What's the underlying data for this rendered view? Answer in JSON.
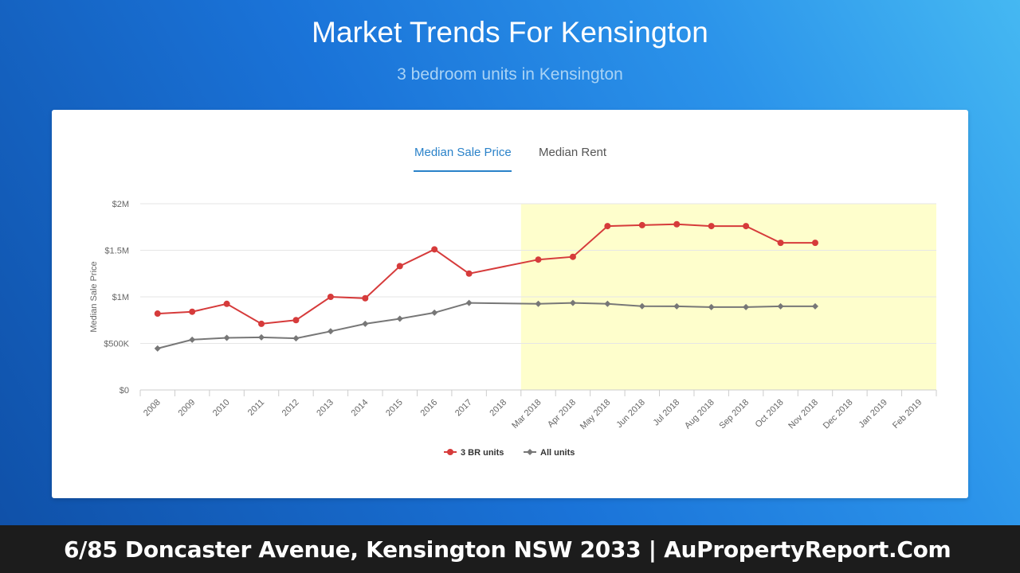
{
  "page": {
    "title": "Market Trends For Kensington",
    "subtitle": "3 bedroom units in Kensington"
  },
  "tabs": [
    {
      "label": "Median Sale Price",
      "active": true
    },
    {
      "label": "Median Rent",
      "active": false
    }
  ],
  "footer": {
    "text": "6/85 Doncaster Avenue, Kensington NSW 2033 | AuPropertyReport.Com"
  },
  "colors": {
    "accent": "#2a82c9",
    "series_3br": "#d63b3b",
    "series_all": "#777777",
    "highlight_band": "#fefecc"
  },
  "chart_data": {
    "type": "line",
    "ylabel": "Median Sale Price",
    "xlabel": "",
    "ylim": [
      0,
      2000000
    ],
    "yticks": [
      {
        "value": 0,
        "label": "$0"
      },
      {
        "value": 500000,
        "label": "$500K"
      },
      {
        "value": 1000000,
        "label": "$1M"
      },
      {
        "value": 1500000,
        "label": "$1.5M"
      },
      {
        "value": 2000000,
        "label": "$2M"
      }
    ],
    "categories": [
      "2008",
      "2009",
      "2010",
      "2011",
      "2012",
      "2013",
      "2014",
      "2015",
      "2016",
      "2017",
      "2018",
      "Mar 2018",
      "Apr 2018",
      "May 2018",
      "Jun 2018",
      "Jul 2018",
      "Aug 2018",
      "Sep 2018",
      "Oct 2018",
      "Nov 2018",
      "Dec 2018",
      "Jan 2019",
      "Feb 2019"
    ],
    "highlight_band": {
      "from": "Mar 2018",
      "to": "Feb 2019"
    },
    "grid": true,
    "legend_position": "bottom-center",
    "series": [
      {
        "name": "3 BR units",
        "marker": "circle",
        "points": [
          {
            "x": "2008",
            "y": 820000
          },
          {
            "x": "2009",
            "y": 840000
          },
          {
            "x": "2010",
            "y": 925000
          },
          {
            "x": "2011",
            "y": 710000
          },
          {
            "x": "2012",
            "y": 750000
          },
          {
            "x": "2013",
            "y": 1000000
          },
          {
            "x": "2014",
            "y": 985000
          },
          {
            "x": "2015",
            "y": 1330000
          },
          {
            "x": "2016",
            "y": 1510000
          },
          {
            "x": "2017",
            "y": 1250000
          },
          {
            "x": "Mar 2018",
            "y": 1400000
          },
          {
            "x": "Apr 2018",
            "y": 1430000
          },
          {
            "x": "May 2018",
            "y": 1760000
          },
          {
            "x": "Jun 2018",
            "y": 1770000
          },
          {
            "x": "Jul 2018",
            "y": 1780000
          },
          {
            "x": "Aug 2018",
            "y": 1760000
          },
          {
            "x": "Sep 2018",
            "y": 1760000
          },
          {
            "x": "Oct 2018",
            "y": 1580000
          },
          {
            "x": "Nov 2018",
            "y": 1580000
          }
        ]
      },
      {
        "name": "All units",
        "marker": "diamond",
        "points": [
          {
            "x": "2008",
            "y": 445000
          },
          {
            "x": "2009",
            "y": 540000
          },
          {
            "x": "2010",
            "y": 560000
          },
          {
            "x": "2011",
            "y": 565000
          },
          {
            "x": "2012",
            "y": 555000
          },
          {
            "x": "2013",
            "y": 630000
          },
          {
            "x": "2014",
            "y": 710000
          },
          {
            "x": "2015",
            "y": 765000
          },
          {
            "x": "2016",
            "y": 830000
          },
          {
            "x": "2017",
            "y": 935000
          },
          {
            "x": "Mar 2018",
            "y": 925000
          },
          {
            "x": "Apr 2018",
            "y": 935000
          },
          {
            "x": "May 2018",
            "y": 925000
          },
          {
            "x": "Jun 2018",
            "y": 900000
          },
          {
            "x": "Jul 2018",
            "y": 898000
          },
          {
            "x": "Aug 2018",
            "y": 890000
          },
          {
            "x": "Sep 2018",
            "y": 890000
          },
          {
            "x": "Oct 2018",
            "y": 898000
          },
          {
            "x": "Nov 2018",
            "y": 898000
          }
        ]
      }
    ]
  }
}
